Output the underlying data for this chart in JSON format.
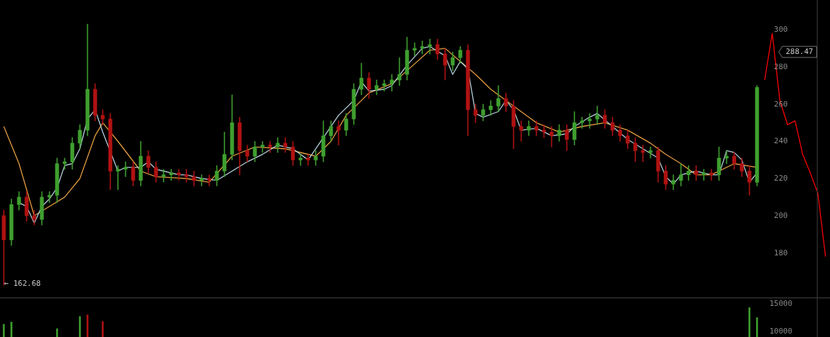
{
  "chart_data": [
    {
      "type": "candlestick",
      "categories": [
        null,
        null,
        null,
        null,
        null,
        null,
        null,
        null,
        null,
        null,
        null,
        null,
        null,
        null,
        null,
        null,
        null,
        null,
        null,
        null,
        null,
        null,
        null,
        null,
        null,
        null,
        null,
        null,
        null,
        null,
        null,
        null,
        null,
        null,
        null,
        null,
        null,
        null,
        null,
        null,
        null,
        null,
        null,
        null,
        null,
        null,
        null,
        null,
        null,
        null,
        null,
        null,
        null,
        null,
        null,
        null,
        null,
        null,
        null,
        null,
        null,
        null,
        null,
        null,
        null,
        null,
        null,
        null,
        null,
        null,
        null,
        null,
        null,
        null,
        null,
        null,
        null,
        null,
        null,
        null,
        null,
        null,
        null,
        null,
        null,
        null,
        null,
        null,
        null,
        null,
        null,
        null,
        null,
        null,
        null,
        null,
        null,
        null,
        null,
        null,
        null,
        null,
        null,
        null,
        null,
        null,
        null,
        null,
        null
      ],
      "ohlc": [
        [
          200,
          203,
          162.68,
          187
        ],
        [
          187,
          209,
          184,
          206
        ],
        [
          206,
          213,
          203,
          210
        ],
        [
          210,
          213,
          197,
          200
        ],
        [
          200,
          203,
          195,
          198
        ],
        [
          198,
          213,
          195,
          210
        ],
        [
          210,
          213,
          207,
          211
        ],
        [
          211,
          231,
          207,
          228
        ],
        [
          228,
          231,
          225,
          229
        ],
        [
          229,
          242,
          225,
          239
        ],
        [
          239,
          249,
          236,
          246
        ],
        [
          246,
          303,
          243,
          268
        ],
        [
          268,
          271,
          251,
          254
        ],
        [
          254,
          257,
          249,
          252
        ],
        [
          252,
          255,
          214,
          224
        ],
        [
          224,
          227,
          214,
          225
        ],
        [
          225,
          229,
          221,
          226
        ],
        [
          226,
          229,
          216,
          219
        ],
        [
          219,
          240,
          216,
          232
        ],
        [
          232,
          235,
          223,
          226
        ],
        [
          226,
          229,
          218,
          221
        ],
        [
          221,
          225,
          218,
          222
        ],
        [
          222,
          225,
          219,
          223
        ],
        [
          223,
          225,
          219,
          222
        ],
        [
          222,
          225,
          218,
          221
        ],
        [
          221,
          224,
          216,
          219
        ],
        [
          219,
          222,
          216,
          220
        ],
        [
          220,
          222,
          216,
          219
        ],
        [
          219,
          227,
          216,
          224
        ],
        [
          224,
          245,
          221,
          233
        ],
        [
          233,
          265,
          230,
          250
        ],
        [
          250,
          253,
          222,
          235
        ],
        [
          235,
          238,
          229,
          232
        ],
        [
          232,
          240,
          229,
          237
        ],
        [
          237,
          240,
          234,
          238
        ],
        [
          238,
          240,
          234,
          237
        ],
        [
          237,
          242,
          234,
          239
        ],
        [
          239,
          242,
          234,
          237
        ],
        [
          237,
          240,
          227,
          230
        ],
        [
          230,
          233,
          227,
          231
        ],
        [
          231,
          233,
          227,
          230
        ],
        [
          230,
          235,
          227,
          232
        ],
        [
          232,
          251,
          229,
          243
        ],
        [
          243,
          251,
          240,
          248
        ],
        [
          248,
          251,
          238,
          246
        ],
        [
          246,
          255,
          243,
          252
        ],
        [
          252,
          271,
          249,
          268
        ],
        [
          268,
          282,
          265,
          274
        ],
        [
          274,
          277,
          263,
          268
        ],
        [
          268,
          273,
          265,
          270
        ],
        [
          270,
          273,
          267,
          271
        ],
        [
          271,
          276,
          267,
          273
        ],
        [
          273,
          285,
          270,
          276
        ],
        [
          276,
          296,
          273,
          289
        ],
        [
          289,
          293,
          286,
          290
        ],
        [
          290,
          294,
          287,
          291
        ],
        [
          291,
          295,
          287,
          292
        ],
        [
          292,
          295,
          284,
          287
        ],
        [
          287,
          290,
          273,
          281
        ],
        [
          281,
          288,
          278,
          285
        ],
        [
          285,
          291,
          282,
          289
        ],
        [
          289,
          292,
          243,
          257
        ],
        [
          257,
          260,
          250,
          254
        ],
        [
          254,
          260,
          251,
          257
        ],
        [
          257,
          262,
          254,
          259
        ],
        [
          259,
          270,
          256,
          263
        ],
        [
          263,
          266,
          256,
          259
        ],
        [
          259,
          262,
          236,
          248
        ],
        [
          248,
          251,
          240,
          246
        ],
        [
          246,
          251,
          243,
          248
        ],
        [
          248,
          251,
          243,
          246
        ],
        [
          246,
          249,
          242,
          245
        ],
        [
          245,
          248,
          237,
          243
        ],
        [
          243,
          249,
          240,
          246
        ],
        [
          246,
          249,
          235,
          241
        ],
        [
          241,
          256,
          238,
          250
        ],
        [
          250,
          253,
          247,
          251
        ],
        [
          251,
          255,
          247,
          252
        ],
        [
          252,
          259,
          249,
          254
        ],
        [
          254,
          257,
          247,
          250
        ],
        [
          250,
          253,
          243,
          246
        ],
        [
          246,
          249,
          240,
          243
        ],
        [
          243,
          246,
          236,
          239
        ],
        [
          239,
          242,
          229,
          235
        ],
        [
          235,
          238,
          229,
          234
        ],
        [
          234,
          237,
          231,
          235
        ],
        [
          235,
          237,
          218,
          224
        ],
        [
          224,
          227,
          214,
          217
        ],
        [
          217,
          222,
          214,
          219
        ],
        [
          219,
          228,
          216,
          222
        ],
        [
          222,
          227,
          219,
          224
        ],
        [
          224,
          227,
          219,
          222
        ],
        [
          222,
          225,
          219,
          223
        ],
        [
          223,
          225,
          219,
          222
        ],
        [
          222,
          237,
          219,
          231
        ],
        [
          231,
          235,
          228,
          232
        ],
        [
          232,
          234,
          225,
          228
        ],
        [
          228,
          231,
          221,
          224
        ],
        [
          224,
          227,
          211,
          218
        ],
        [
          218,
          270,
          216,
          269
        ],
        null,
        null,
        null,
        null,
        null,
        null,
        null,
        null,
        null
      ],
      "series": [
        {
          "type": "line",
          "color": "#b8d4e0",
          "values": [
            null,
            null,
            207,
            205,
            196,
            205,
            209,
            215,
            227,
            228,
            236,
            252,
            257,
            245,
            null,
            224,
            226,
            226,
            226,
            229,
            225,
            224,
            223,
            222,
            222,
            null,
            220,
            null,
            219,
            null,
            null,
            null,
            229,
            null,
            233,
            null,
            238,
            null,
            236,
            null,
            230,
            null,
            242,
            null,
            254,
            null,
            262,
            272,
            267,
            null,
            268,
            270,
            null,
            281,
            null,
            290,
            291,
            null,
            286,
            276,
            283,
            279,
            255,
            253,
            null,
            256,
            262,
            257,
            246,
            null,
            247,
            null,
            243,
            null,
            244,
            248,
            null,
            253,
            255,
            null,
            248,
            null,
            241,
            null,
            236,
            null,
            231,
            221,
            217,
            222,
            null,
            224,
            null,
            222,
            222,
            235,
            234,
            230,
            218,
            223,
            null,
            null,
            null,
            null,
            null,
            null,
            null,
            null,
            null
          ]
        },
        {
          "type": "line",
          "color": "#e8a040",
          "values": [
            248,
            null,
            228,
            null,
            200,
            null,
            205,
            null,
            210,
            null,
            220,
            null,
            243,
            250,
            null,
            240,
            null,
            null,
            224,
            null,
            221,
            null,
            null,
            null,
            220,
            null,
            null,
            218,
            null,
            null,
            232,
            null,
            null,
            237,
            null,
            null,
            null,
            236,
            null,
            null,
            null,
            232,
            null,
            240,
            null,
            254,
            null,
            null,
            266,
            null,
            null,
            271,
            null,
            278,
            null,
            null,
            289,
            null,
            290,
            null,
            283,
            null,
            276,
            null,
            268,
            null,
            null,
            259,
            null,
            null,
            250,
            null,
            null,
            245,
            null,
            null,
            248,
            null,
            null,
            250,
            null,
            null,
            246,
            null,
            null,
            239,
            null,
            233,
            null,
            228,
            null,
            222,
            null,
            222,
            null,
            null,
            228,
            null,
            null,
            226,
            null,
            null,
            null,
            null,
            null,
            null,
            null,
            null,
            null
          ]
        },
        {
          "type": "line",
          "color": "#ff0000",
          "values": [
            null,
            null,
            null,
            null,
            null,
            null,
            null,
            null,
            null,
            null,
            null,
            null,
            null,
            null,
            null,
            null,
            null,
            null,
            null,
            null,
            null,
            null,
            null,
            null,
            null,
            null,
            null,
            null,
            null,
            null,
            null,
            null,
            null,
            null,
            null,
            null,
            null,
            null,
            null,
            null,
            null,
            null,
            null,
            null,
            null,
            null,
            null,
            null,
            null,
            null,
            null,
            null,
            null,
            null,
            null,
            null,
            null,
            null,
            null,
            null,
            null,
            null,
            null,
            null,
            null,
            null,
            null,
            null,
            null,
            null,
            null,
            null,
            null,
            null,
            null,
            null,
            null,
            null,
            null,
            null,
            null,
            null,
            null,
            null,
            null,
            null,
            null,
            null,
            null,
            null,
            null,
            null,
            null,
            null,
            null,
            null,
            null,
            null,
            null,
            null,
            273,
            298,
            262,
            249,
            251,
            233,
            223,
            212,
            178
          ]
        }
      ],
      "ylim": [
        156,
        316
      ],
      "yticks": [
        180,
        200,
        220,
        240,
        260,
        280,
        300
      ],
      "annotations": [
        "← 162.68",
        "288.47"
      ]
    },
    {
      "type": "bar",
      "categories": [
        null,
        null,
        null,
        null,
        null,
        null,
        null,
        null,
        null,
        null,
        null,
        null,
        null,
        null,
        null,
        null,
        null,
        null,
        null,
        null,
        null,
        null,
        null,
        null,
        null,
        null,
        null,
        null,
        null,
        null,
        null,
        null,
        null,
        null,
        null,
        null,
        null,
        null,
        null,
        null,
        null,
        null,
        null,
        null,
        null,
        null,
        null,
        null,
        null,
        null,
        null,
        null,
        null,
        null,
        null,
        null,
        null,
        null,
        null,
        null,
        null,
        null,
        null,
        null,
        null,
        null,
        null,
        null,
        null,
        null,
        null,
        null,
        null,
        null,
        null,
        null,
        null,
        null,
        null,
        null,
        null,
        null,
        null,
        null,
        null,
        null,
        null,
        null,
        null,
        null,
        null,
        null,
        null,
        null,
        null,
        null,
        null,
        null,
        null,
        null,
        null,
        null,
        null,
        null,
        null,
        null,
        null,
        null,
        null
      ],
      "values": [
        11300,
        11700,
        null,
        null,
        null,
        null,
        null,
        10500,
        null,
        null,
        12700,
        13000,
        null,
        11800,
        null,
        null,
        null,
        null,
        null,
        null,
        null,
        null,
        null,
        null,
        null,
        null,
        null,
        null,
        null,
        null,
        null,
        null,
        null,
        null,
        null,
        null,
        null,
        null,
        null,
        null,
        null,
        null,
        null,
        null,
        null,
        null,
        null,
        null,
        null,
        null,
        null,
        null,
        null,
        null,
        null,
        null,
        null,
        null,
        null,
        null,
        null,
        null,
        null,
        null,
        null,
        null,
        null,
        null,
        null,
        null,
        null,
        null,
        null,
        null,
        null,
        null,
        null,
        null,
        null,
        null,
        null,
        null,
        null,
        null,
        null,
        null,
        null,
        null,
        null,
        null,
        null,
        null,
        null,
        null,
        null,
        null,
        null,
        null,
        14300,
        12500,
        null,
        null,
        null,
        null,
        null,
        null,
        null,
        null,
        null
      ],
      "colors": [
        "#3f9f2f",
        "#3f9f2f",
        null,
        null,
        null,
        null,
        null,
        "#3f9f2f",
        null,
        null,
        "#3f9f2f",
        "#b01212",
        null,
        "#b01212",
        null,
        null,
        null,
        null,
        null,
        null,
        null,
        null,
        null,
        null,
        null,
        null,
        null,
        null,
        null,
        null,
        null,
        null,
        null,
        null,
        null,
        null,
        null,
        null,
        null,
        null,
        null,
        null,
        null,
        null,
        null,
        null,
        null,
        null,
        null,
        null,
        null,
        null,
        null,
        null,
        null,
        null,
        null,
        null,
        null,
        null,
        null,
        null,
        null,
        null,
        null,
        null,
        null,
        null,
        null,
        null,
        null,
        null,
        null,
        null,
        null,
        null,
        null,
        null,
        null,
        null,
        null,
        null,
        null,
        null,
        null,
        null,
        null,
        null,
        null,
        null,
        null,
        null,
        null,
        null,
        null,
        null,
        null,
        null,
        "#3f9f2f",
        "#3f9f2f",
        null,
        null,
        null,
        null,
        null,
        null,
        null,
        null,
        null
      ],
      "ylim": [
        9000,
        16000
      ],
      "yticks": [
        10000,
        15000
      ]
    }
  ]
}
